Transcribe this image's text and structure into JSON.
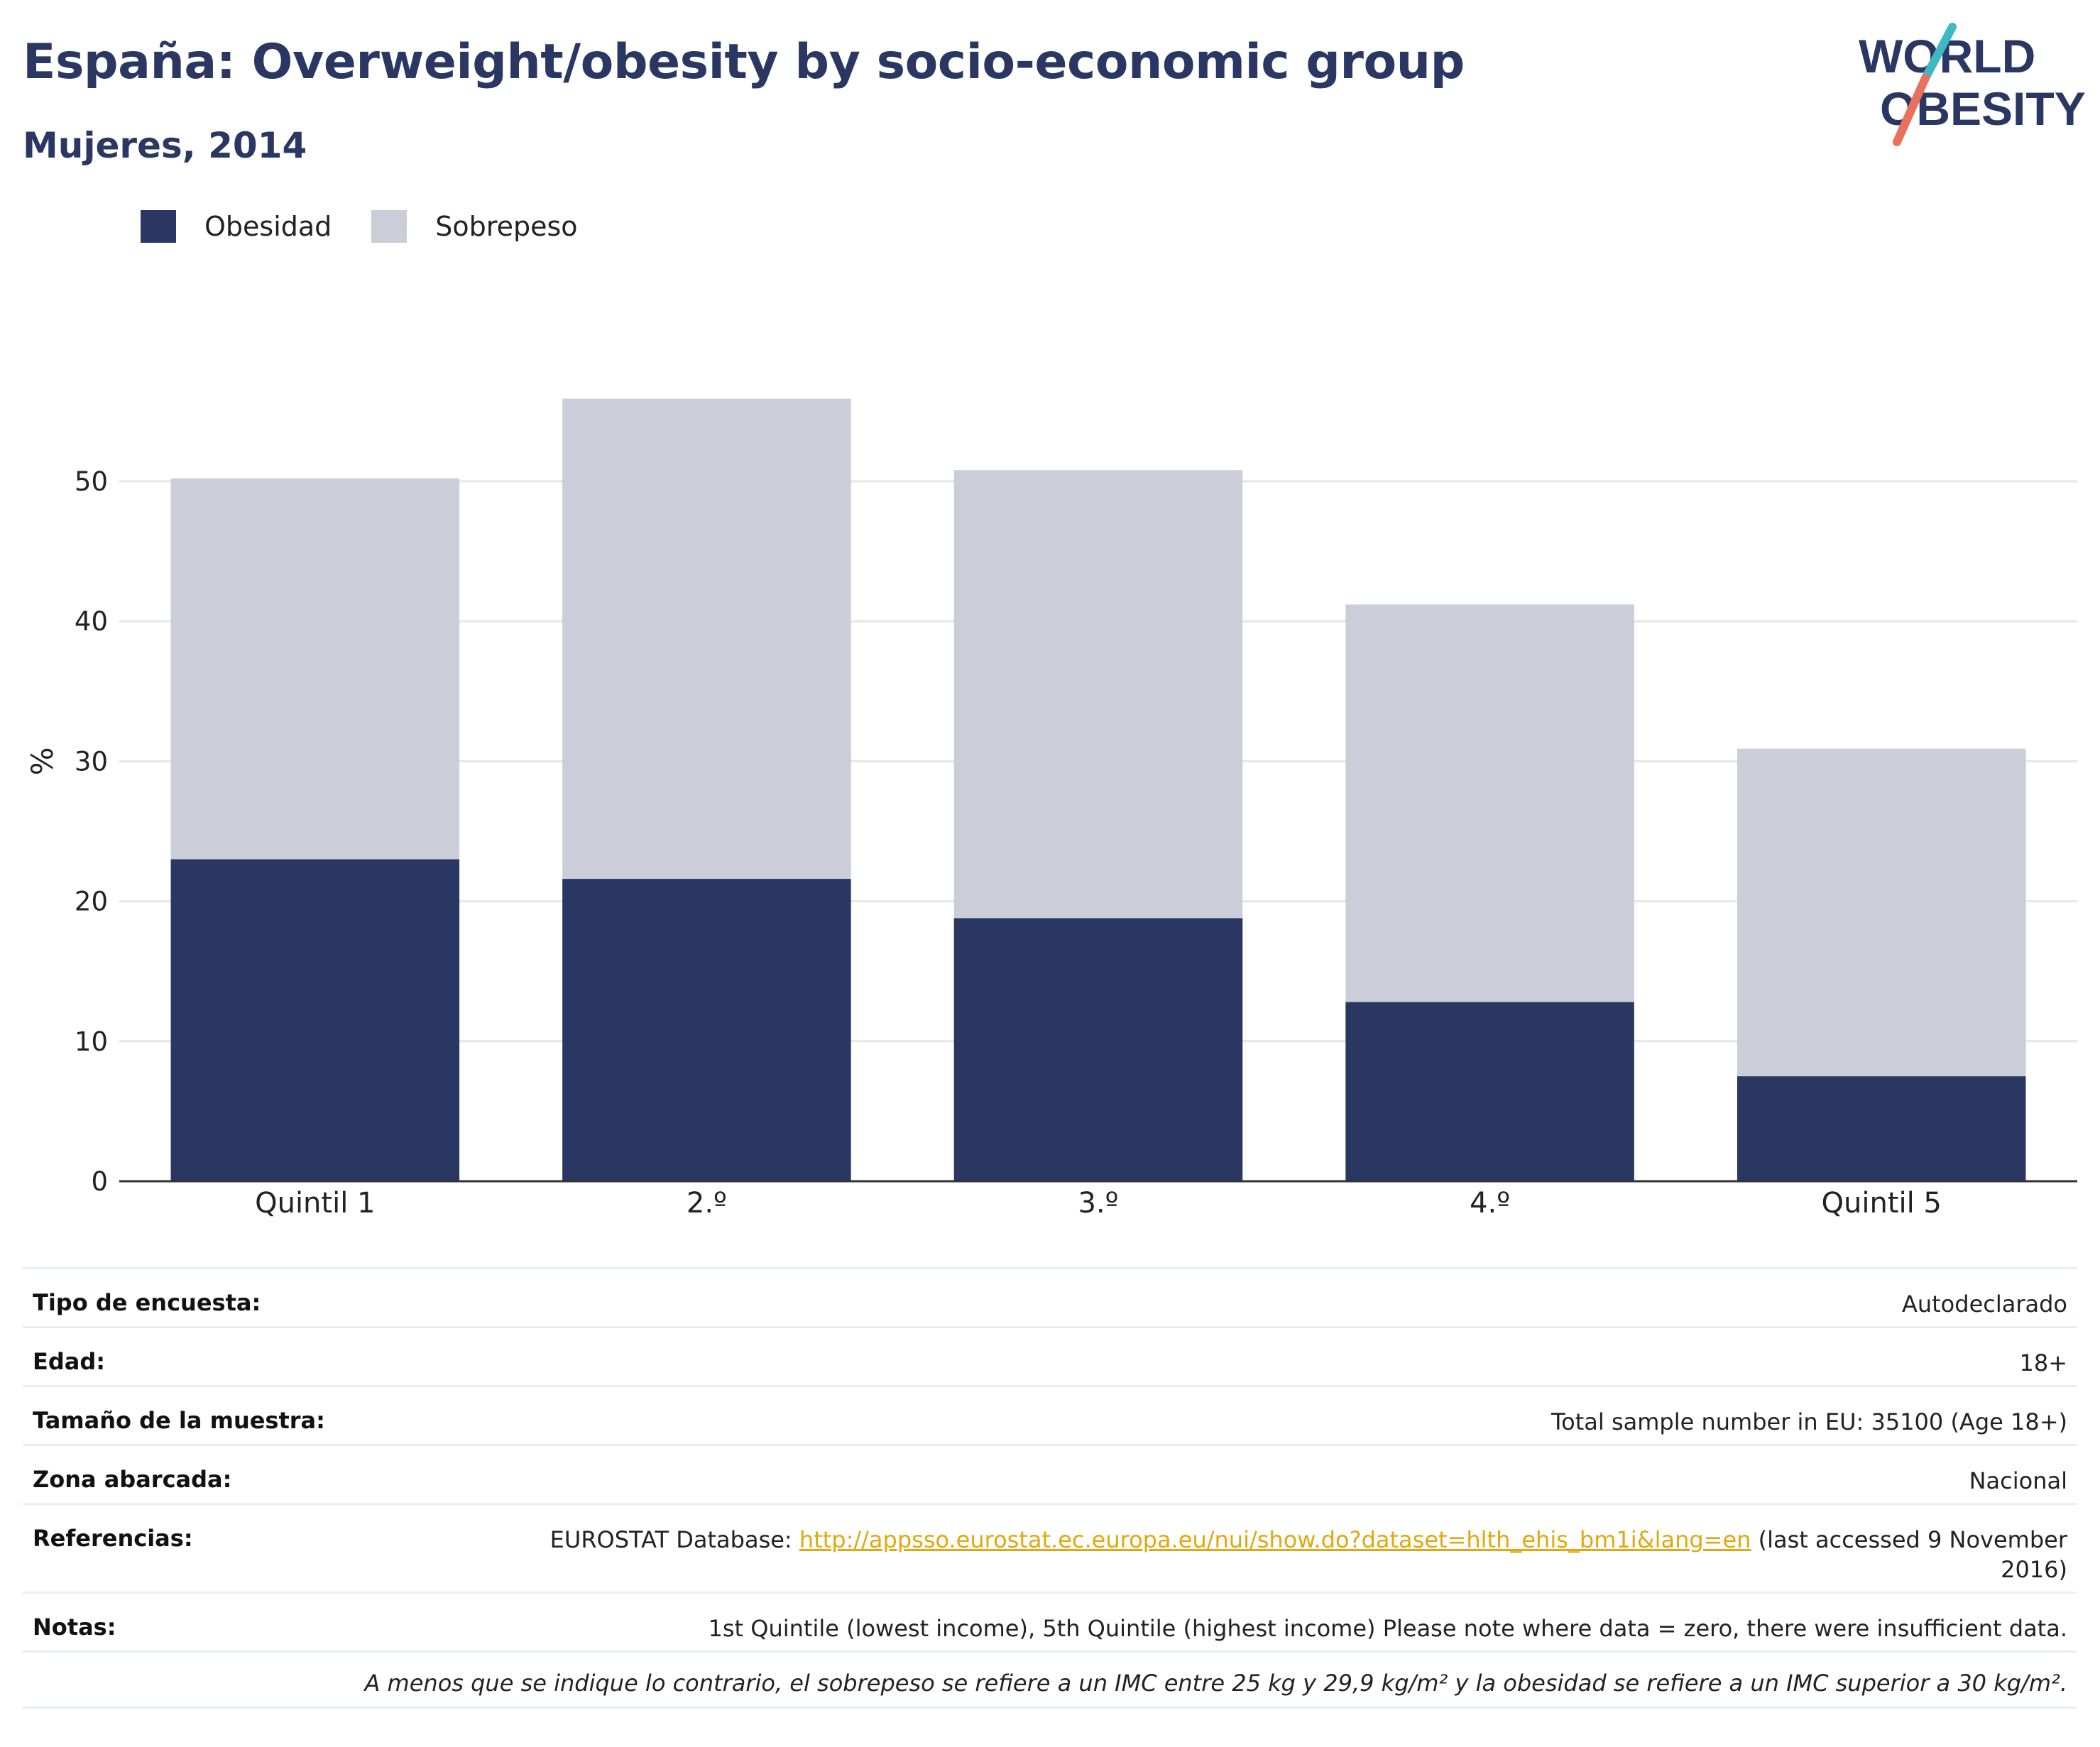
{
  "header": {
    "title": "España: Overweight/obesity by socio-economic group",
    "subtitle": "Mujeres, 2014"
  },
  "logo": {
    "line1": "WORLD",
    "line2": "OBESITY",
    "colors": {
      "text": "#2b3763",
      "slash_teal": "#3fb8c4",
      "slash_coral": "#e8705d"
    }
  },
  "legend": {
    "items": [
      {
        "label": "Obesidad",
        "color": "#2b3763"
      },
      {
        "label": "Sobrepeso",
        "color": "#cbcdd8"
      }
    ]
  },
  "chart_data": {
    "type": "bar",
    "stacked": true,
    "categories": [
      "Quintil 1",
      "2.º",
      "3.º",
      "4.º",
      "Quintil 5"
    ],
    "series": [
      {
        "name": "Obesidad",
        "color": "#2b3763",
        "values": [
          23.0,
          21.6,
          18.8,
          12.8,
          7.5
        ]
      },
      {
        "name": "Sobrepeso",
        "color": "#cbcdd8",
        "values": [
          27.2,
          34.3,
          32.0,
          28.4,
          23.4
        ]
      }
    ],
    "ylabel": "%",
    "ylim": [
      0,
      60
    ],
    "yticks": [
      0,
      10,
      20,
      30,
      40,
      50
    ],
    "grid": true,
    "legend_position": "top-left"
  },
  "info": {
    "rows": [
      {
        "label": "Tipo de encuesta:",
        "value": "Autodeclarado"
      },
      {
        "label": "Edad:",
        "value": "18+"
      },
      {
        "label": "Tamaño de la muestra:",
        "value": "Total sample number in EU: 35100 (Age 18+)"
      },
      {
        "label": "Zona abarcada:",
        "value": "Nacional"
      },
      {
        "label": "Referencias:",
        "value_prefix": "EUROSTAT Database: ",
        "value_link": "http://appsso.eurostat.ec.europa.eu/nui/show.do?dataset=hlth_ehis_bm1i&lang=en",
        "value_suffix": " (last accessed 9 November 2016)"
      },
      {
        "label": "Notas:",
        "value": "1st Quintile (lowest income), 5th Quintile (highest income) Please note where data = zero, there were insufficient data."
      }
    ],
    "footnote": "A menos que se indique lo contrario, el sobrepeso se refiere a un IMC entre 25 kg y 29,9 kg/m² y la obesidad se refiere a un IMC superior a 30 kg/m²."
  }
}
